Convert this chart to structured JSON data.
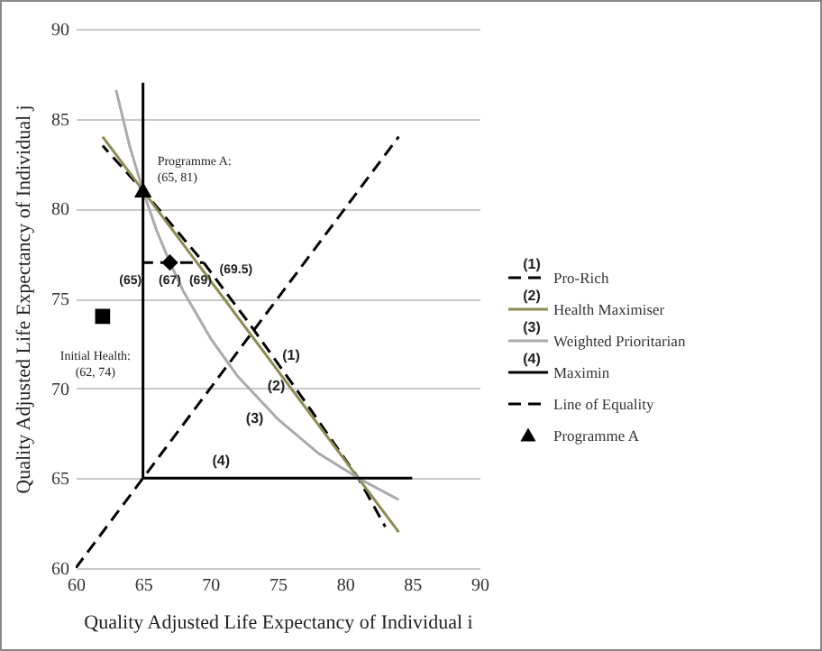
{
  "chart_data": {
    "type": "line",
    "xlabel": "Quality Adjusted Life Expectancy of Individual i",
    "ylabel": "Quality Adjusted Life Expectancy of Individual j",
    "xlim": [
      60,
      90
    ],
    "xticks": [
      60,
      65,
      70,
      75,
      80,
      85,
      90
    ],
    "ylim": [
      60,
      90
    ],
    "yticks": [
      60,
      65,
      70,
      75,
      80,
      85,
      90
    ],
    "grid": "y",
    "legend": "right",
    "marker": "none",
    "series": [
      {
        "name": "Pro-Rich",
        "color": "#000000",
        "line_style": "dashed",
        "x": [
          62,
          65,
          69.5,
          73,
          77,
          81,
          83
        ],
        "values": [
          83.5,
          81,
          77,
          73.5,
          69.3,
          65,
          62.3
        ]
      },
      {
        "name": "Health Maximiser",
        "color": "#8c8c50",
        "line_style": "solid",
        "x": [
          62,
          84
        ],
        "values": [
          84,
          62
        ]
      },
      {
        "name": "Weighted Prioritarian",
        "color": "#aaaaaa",
        "line_style": "solid",
        "x": [
          63,
          64,
          65,
          66,
          67,
          68,
          70,
          72,
          75,
          78,
          81,
          84
        ],
        "values": [
          86.6,
          83.5,
          81,
          78.8,
          77,
          75.4,
          72.8,
          70.7,
          68.3,
          66.4,
          65,
          63.8
        ]
      },
      {
        "name": "Maximin",
        "color": "#000000",
        "line_style": "solid",
        "x": [
          65,
          65,
          85
        ],
        "values": [
          87,
          65,
          65
        ]
      },
      {
        "name": "Line of Equality",
        "color": "#000000",
        "line_style": "dashed",
        "x": [
          60,
          84
        ],
        "values": [
          60,
          84
        ]
      },
      {
        "name": "Programme A",
        "type": "scatter",
        "marker": "triangle",
        "color": "#000000",
        "x": [
          65
        ],
        "values": [
          81
        ]
      },
      {
        "type": "scatter",
        "marker": "square",
        "color": "#000000",
        "x": [
          62
        ],
        "values": [
          74
        ]
      },
      {
        "color": "#000000",
        "line_style": "dashed",
        "x": [
          65,
          69.5
        ],
        "values": [
          77,
          77
        ]
      },
      {
        "type": "scatter",
        "marker": "diamond",
        "color": "#000000",
        "x": [
          67
        ],
        "values": [
          77
        ]
      }
    ],
    "annotations": [
      "(1)",
      "(2)",
      "(3)",
      "(4)",
      {
        "text": "Programme A:\n(65, 81)",
        "x": 65,
        "y": 81
      },
      {
        "text": "Initial Health:\n(62, 74)",
        "x": 62,
        "y": 74
      },
      {
        "text": "(65)",
        "x": 65,
        "y": 77
      },
      {
        "text": "(67)",
        "x": 67,
        "y": 77
      },
      {
        "text": "(69)",
        "x": 69,
        "y": 77
      },
      {
        "text": "(69.5)",
        "x": 69.5,
        "y": 77
      }
    ]
  }
}
